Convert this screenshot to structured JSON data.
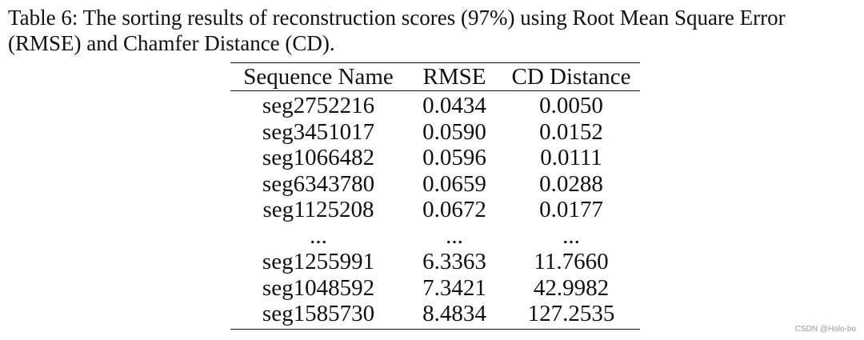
{
  "caption": "Table 6: The sorting results of reconstruction scores (97%) using Root Mean Square Error (RMSE) and Chamfer Distance (CD).",
  "table": {
    "headers": [
      "Sequence Name",
      "RMSE",
      "CD Distance"
    ],
    "rows": [
      [
        "seg2752216",
        "0.0434",
        "0.0050"
      ],
      [
        "seg3451017",
        "0.0590",
        "0.0152"
      ],
      [
        "seg1066482",
        "0.0596",
        "0.0111"
      ],
      [
        "seg6343780",
        "0.0659",
        "0.0288"
      ],
      [
        "seg1125208",
        "0.0672",
        "0.0177"
      ],
      [
        "...",
        "...",
        "..."
      ],
      [
        "seg1255991",
        "6.3363",
        "11.7660"
      ],
      [
        "seg1048592",
        "7.3421",
        "42.9982"
      ],
      [
        "seg1585730",
        "8.4834",
        "127.2535"
      ]
    ]
  },
  "watermark": "CSDN @Holo-bo"
}
